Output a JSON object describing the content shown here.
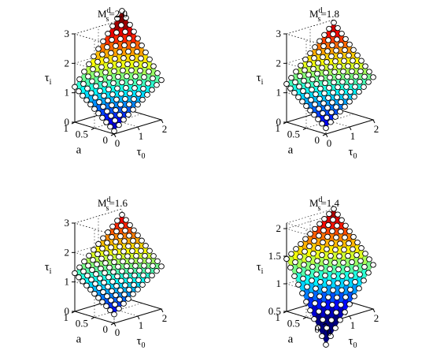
{
  "chart_data": [
    {
      "type": "surface3d",
      "title": {
        "main": "M",
        "sup": "d",
        "sub": "s",
        "value": "=2.0"
      },
      "xlabel": {
        "main": "τ",
        "sub": "0"
      },
      "ylabel": "a",
      "zlabel": {
        "main": "τ",
        "sub": "i"
      },
      "xticks": [
        "0",
        "1",
        "2"
      ],
      "yticks": [
        "0",
        "0.5",
        "1"
      ],
      "zticks": [
        "0",
        "1",
        "2",
        "3"
      ],
      "xlim": [
        0,
        2
      ],
      "ylim": [
        0,
        1
      ],
      "zlim": [
        0,
        3
      ],
      "colormap": "jet",
      "markers": "open-circle",
      "grid": true,
      "surface": {
        "tau0": [
          0,
          0.2,
          0.4,
          0.6,
          0.8,
          1.0,
          1.2,
          1.4,
          1.6,
          1.8,
          2.0
        ],
        "a": [
          0,
          0.1,
          0.2,
          0.3,
          0.4,
          0.5,
          0.6,
          0.7,
          0.8,
          0.9,
          1.0
        ],
        "tau_i_corners": {
          "tau0_0_a_0": 0.1,
          "tau0_2_a_0": 1.2,
          "tau0_0_a_1": 1.2,
          "tau0_2_a_1": 3.3
        }
      }
    },
    {
      "type": "surface3d",
      "title": {
        "main": "M",
        "sup": "d",
        "sub": "s",
        "value": "=1.8"
      },
      "xlabel": {
        "main": "τ",
        "sub": "0"
      },
      "ylabel": "a",
      "zlabel": {
        "main": "τ",
        "sub": "i"
      },
      "xticks": [
        "0",
        "1",
        "2"
      ],
      "yticks": [
        "0",
        "0.5",
        "1"
      ],
      "zticks": [
        "0",
        "1",
        "2",
        "3"
      ],
      "xlim": [
        0,
        2
      ],
      "ylim": [
        0,
        1
      ],
      "zlim": [
        0,
        3
      ],
      "colormap": "jet",
      "markers": "open-circle",
      "grid": true,
      "surface": {
        "tau0": [
          0,
          0.2,
          0.4,
          0.6,
          0.8,
          1.0,
          1.2,
          1.4,
          1.6,
          1.8,
          2.0
        ],
        "a": [
          0,
          0.1,
          0.2,
          0.3,
          0.4,
          0.5,
          0.6,
          0.7,
          0.8,
          0.9,
          1.0
        ],
        "tau_i_corners": {
          "tau0_0_a_0": 0.2,
          "tau0_2_a_0": 1.3,
          "tau0_0_a_1": 1.3,
          "tau0_2_a_1": 2.9
        }
      }
    },
    {
      "type": "surface3d",
      "title": {
        "main": "M",
        "sup": "d",
        "sub": "s",
        "value": "=1.6"
      },
      "xlabel": {
        "main": "τ",
        "sub": "0"
      },
      "ylabel": "a",
      "zlabel": {
        "main": "τ",
        "sub": "i"
      },
      "xticks": [
        "0",
        "1",
        "2"
      ],
      "yticks": [
        "0",
        "0.5",
        "1"
      ],
      "zticks": [
        "0",
        "1",
        "2",
        "3"
      ],
      "xlim": [
        0,
        2
      ],
      "ylim": [
        0,
        1
      ],
      "zlim": [
        0,
        3
      ],
      "colormap": "jet",
      "markers": "open-circle",
      "grid": true,
      "surface": {
        "tau0": [
          0,
          0.2,
          0.4,
          0.6,
          0.8,
          1.0,
          1.2,
          1.4,
          1.6,
          1.8,
          2.0
        ],
        "a": [
          0,
          0.1,
          0.2,
          0.3,
          0.4,
          0.5,
          0.6,
          0.7,
          0.8,
          0.9,
          1.0
        ],
        "tau_i_corners": {
          "tau0_0_a_0": 0.3,
          "tau0_2_a_0": 1.3,
          "tau0_0_a_1": 1.3,
          "tau0_2_a_1": 2.8
        }
      }
    },
    {
      "type": "surface3d",
      "title": {
        "main": "M",
        "sup": "d",
        "sub": "s",
        "value": "=1.4"
      },
      "xlabel": {
        "main": "τ",
        "sub": "0"
      },
      "ylabel": "a",
      "zlabel": {
        "main": "τ",
        "sub": "i"
      },
      "xticks": [
        "0",
        "1",
        "2"
      ],
      "yticks": [
        "0",
        "0.5",
        "1"
      ],
      "zticks": [
        "0.5",
        "1",
        "1.5",
        "2"
      ],
      "xlim": [
        0,
        2
      ],
      "ylim": [
        0,
        1
      ],
      "zlim": [
        0.5,
        2.1
      ],
      "colormap": "jet",
      "markers": "open-circle",
      "grid": true,
      "surface": {
        "tau0": [
          0,
          0.2,
          0.4,
          0.6,
          0.8,
          1.0,
          1.2,
          1.4,
          1.6,
          1.8,
          2.0
        ],
        "a": [
          0,
          0.1,
          0.2,
          0.3,
          0.4,
          0.5,
          0.6,
          0.7,
          0.8,
          0.9,
          1.0
        ],
        "tau_i_corners": {
          "tau0_0_a_0": 0.35,
          "tau0_2_a_0": 1.25,
          "tau0_0_a_1": 1.45,
          "tau0_2_a_1": 2.1
        }
      }
    }
  ]
}
